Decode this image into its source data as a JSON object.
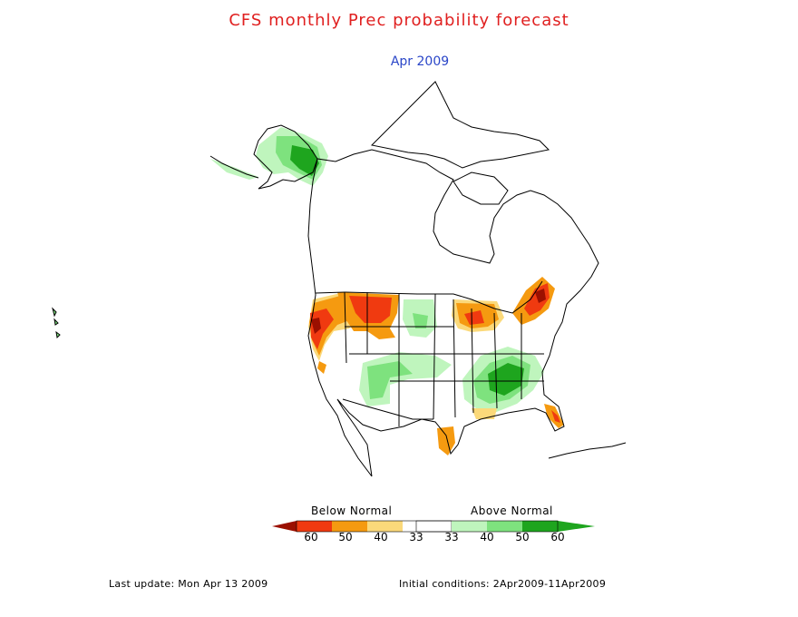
{
  "title": "CFS monthly Prec probability forecast",
  "subtitle": "Apr 2009",
  "colors": {
    "title": "#e02020",
    "subtitle": "#2a46c8",
    "coast": "#000000",
    "below_60": "#9b1000",
    "below_50": "#f03a10",
    "below_40": "#f59a10",
    "below_33": "#fbd97a",
    "above_40": "#bff5bd",
    "above_50": "#7ee27e",
    "above_60": "#1ea51e"
  },
  "legend": {
    "below_label": "Below Normal",
    "above_label": "Above Normal",
    "ticks": [
      "60",
      "50",
      "40",
      "33",
      "33",
      "40",
      "50",
      "60"
    ]
  },
  "footer": {
    "last_update": "Last update: Mon Apr 13 2009",
    "initial_conditions": "Initial conditions: 2Apr2009-11Apr2009"
  }
}
